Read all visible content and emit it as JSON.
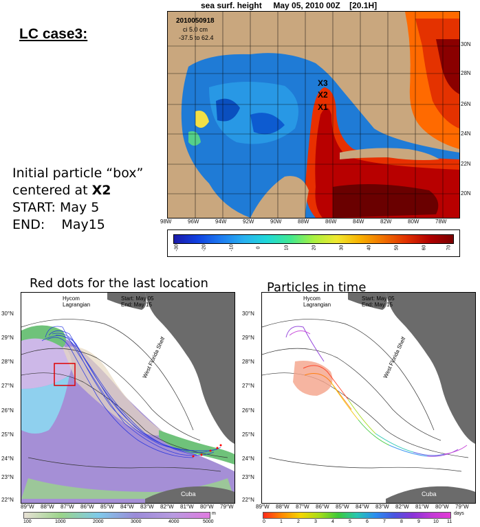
{
  "case_title": "LC case3:",
  "info": {
    "line1": "Initial particle “box”",
    "line2_prefix": "centered at ",
    "line2_bold": "X2",
    "start_label": "START:",
    "start_value": "May 5",
    "end_label": "END:",
    "end_value": "May15"
  },
  "ssh_map": {
    "field": "sea surf. height",
    "date": "May 05, 2010 00Z",
    "hour": "[20.1H]",
    "stamp": "2010050918",
    "ci": "ci 5.0 cm",
    "range": "-37.5 to 62.4",
    "markers": [
      "X3",
      "X2",
      "X1"
    ],
    "lon_ticks": [
      "98W",
      "96W",
      "94W",
      "92W",
      "90W",
      "88W",
      "86W",
      "84W",
      "82W",
      "80W",
      "78W"
    ],
    "lat_ticks": [
      "30N",
      "28N",
      "26N",
      "24N",
      "22N",
      "20N"
    ],
    "colorbar_ticks": [
      "-30",
      "-20",
      "-10",
      "0",
      "10",
      "20",
      "30",
      "40",
      "50",
      "60",
      "70"
    ]
  },
  "left_panel": {
    "caption": "Red dots for the last location",
    "model_name": "Hycom",
    "model_sub": "Lagrangian",
    "start": "Start: May 05",
    "end": "End: May 15",
    "shelf": "West Florida Shelf",
    "cuba": "Cuba",
    "lat_ticks": [
      "30°N",
      "29°N",
      "28°N",
      "27°N",
      "26°N",
      "25°N",
      "24°N",
      "23°N",
      "22°N"
    ],
    "lon_ticks": [
      "89°W",
      "88°W",
      "87°W",
      "86°W",
      "85°W",
      "84°W",
      "83°W",
      "82°W",
      "81°W",
      "80°W",
      "79°W"
    ],
    "colorbar_ticks": [
      "100",
      "1000",
      "2000",
      "3000",
      "4000",
      "5000"
    ],
    "colorbar_unit": "m"
  },
  "right_panel": {
    "caption": "Particles in time",
    "model_name": "Hycom",
    "model_sub": "Lagrangian",
    "start": "Start: May 05",
    "end": "End: May 15",
    "shelf": "West Florida Shelf",
    "cuba": "Cuba",
    "lat_ticks": [
      "30°N",
      "29°N",
      "28°N",
      "27°N",
      "26°N",
      "25°N",
      "24°N",
      "23°N",
      "22°N"
    ],
    "lon_ticks": [
      "89°W",
      "88°W",
      "87°W",
      "86°W",
      "85°W",
      "84°W",
      "83°W",
      "82°W",
      "81°W",
      "80°W",
      "79°W"
    ],
    "colorbar_ticks": [
      "0",
      "1",
      "2",
      "3",
      "4",
      "5",
      "6",
      "7",
      "8",
      "9",
      "10",
      "11"
    ],
    "colorbar_unit": "days"
  }
}
